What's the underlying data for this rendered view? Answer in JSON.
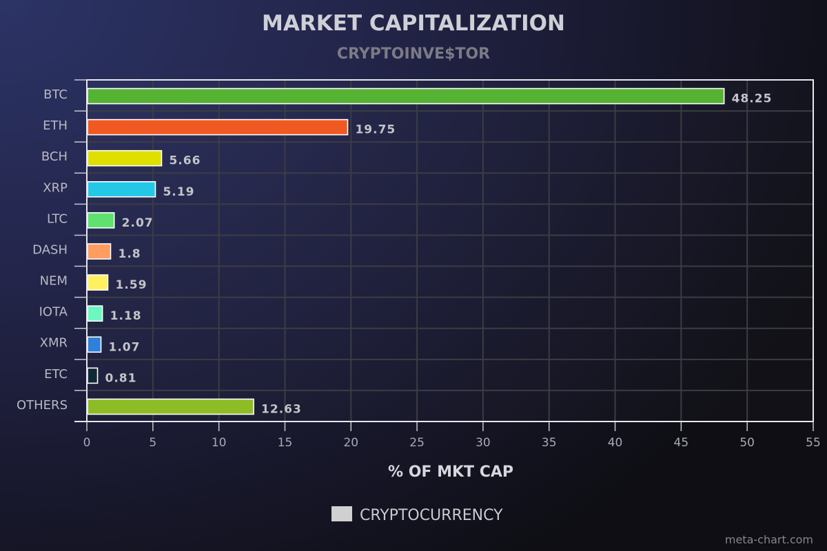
{
  "chart_data": {
    "type": "bar",
    "orientation": "horizontal",
    "title": "MARKET CAPITALIZATION",
    "subtitle": "CRYPTOINVE$TOR",
    "xlabel": "% OF MKT CAP",
    "xlim": [
      0,
      55
    ],
    "xticks": [
      0,
      5,
      10,
      15,
      20,
      25,
      30,
      35,
      40,
      45,
      50,
      55
    ],
    "grid": true,
    "categories": [
      "BTC",
      "ETH",
      "BCH",
      "XRP",
      "LTC",
      "DASH",
      "NEM",
      "IOTA",
      "XMR",
      "ETC",
      "OTHERS"
    ],
    "series": [
      {
        "name": "CRYPTOCURRENCY",
        "values": [
          48.25,
          19.75,
          5.66,
          5.19,
          2.07,
          1.8,
          1.59,
          1.18,
          1.07,
          0.81,
          12.63
        ],
        "value_labels": [
          "48.25",
          "19.75",
          "5.66",
          "5.19",
          "2.07",
          "1.8",
          "1.59",
          "1.18",
          "1.07",
          "0.81",
          "12.63"
        ],
        "colors": [
          "#55b233",
          "#f05a22",
          "#e0e000",
          "#24c8e6",
          "#60e070",
          "#ff9c60",
          "#fff060",
          "#6cf8c0",
          "#2e80d8",
          "#102838",
          "#8ebc26"
        ]
      }
    ],
    "legend": {
      "position": "bottom",
      "label": "CRYPTOCURRENCY",
      "swatch_color": "#d0d0d0"
    }
  },
  "watermark": "meta-chart.com"
}
